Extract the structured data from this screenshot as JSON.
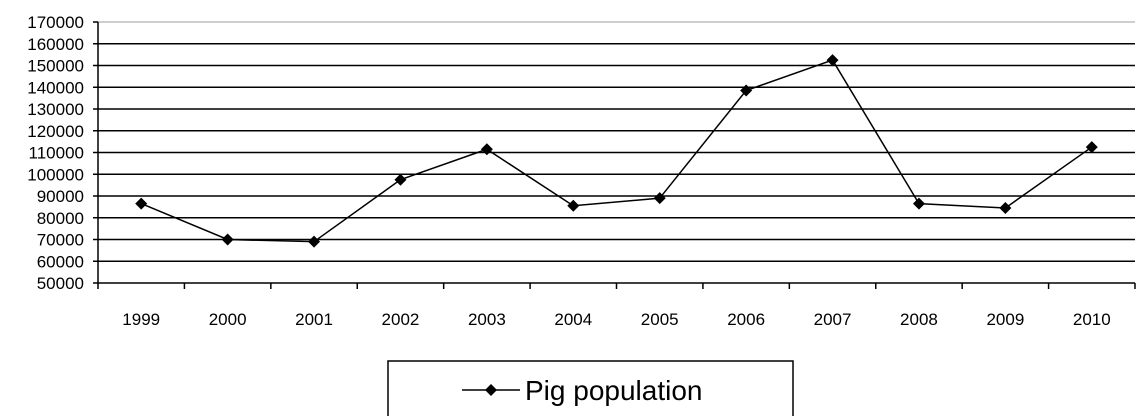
{
  "chart_data": {
    "type": "line",
    "title": "",
    "xlabel": "",
    "ylabel": "",
    "x": [
      "1999",
      "2000",
      "2001",
      "2002",
      "2003",
      "2004",
      "2005",
      "2006",
      "2007",
      "2008",
      "2009",
      "2010"
    ],
    "series": [
      {
        "name": "Pig population",
        "values": [
          86500,
          70000,
          69000,
          97500,
          111500,
          85500,
          89000,
          138500,
          152500,
          86500,
          84500,
          112500
        ],
        "color": "#000000",
        "marker": "diamond"
      }
    ],
    "ylim": [
      50000,
      170000
    ],
    "yticks": [
      "170000",
      "160000",
      "150000",
      "140000",
      "130000",
      "120000",
      "110000",
      "100000",
      "90000",
      "80000",
      "70000",
      "60000",
      "50000"
    ],
    "ytick_values": [
      170000,
      160000,
      150000,
      140000,
      130000,
      120000,
      110000,
      100000,
      90000,
      80000,
      70000,
      60000,
      50000
    ],
    "grid": "horizontal",
    "legend": {
      "placement": "bottom-center",
      "label": "Pig population"
    }
  }
}
